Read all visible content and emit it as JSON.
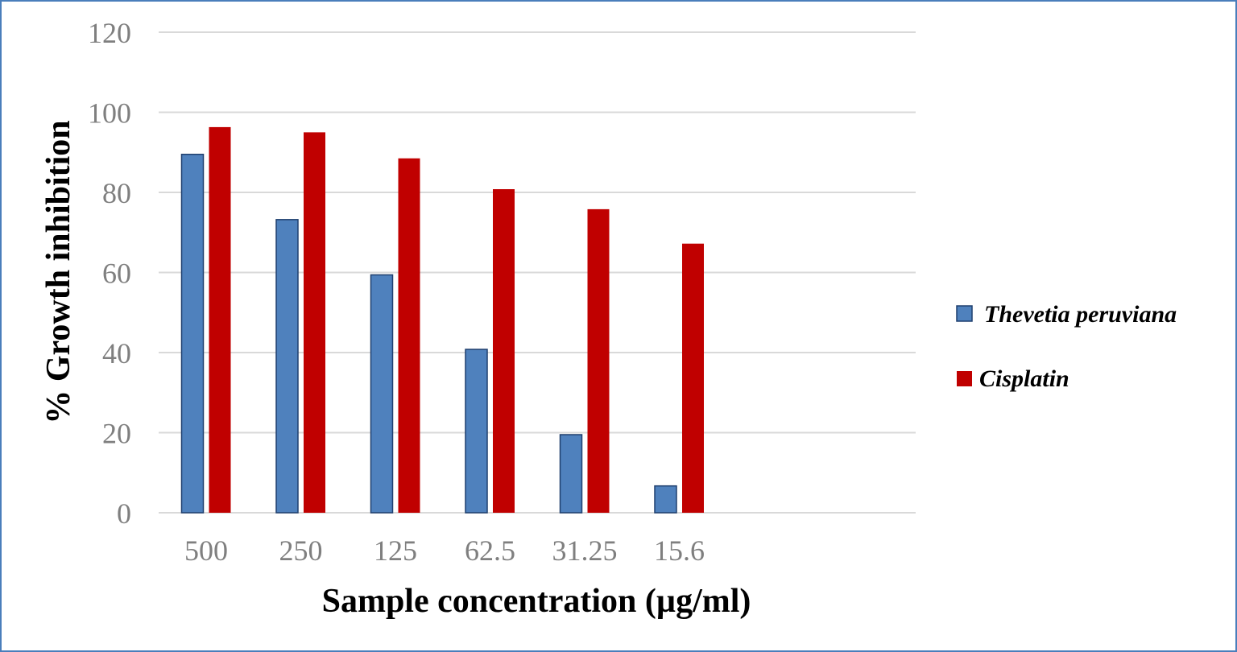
{
  "chart_data": {
    "type": "bar",
    "categories": [
      "500",
      "250",
      "125",
      "62.5",
      "31.25",
      "15.6"
    ],
    "series": [
      {
        "name": "Thevetia peruviana",
        "values": [
          89.5,
          73.2,
          59.4,
          40.8,
          19.5,
          6.7
        ],
        "color": "#4f81bd",
        "stroke": "#1f3f6e"
      },
      {
        "name": "Cisplatin",
        "values": [
          96.3,
          95.0,
          88.5,
          80.8,
          75.8,
          67.2
        ],
        "color": "#c00000",
        "stroke": "#c00000"
      }
    ],
    "xlabel": "Sample concentration (µg/ml)",
    "ylabel": "% Growth inhibition",
    "ylim": [
      0,
      120
    ],
    "yticks": [
      "0",
      "20",
      "40",
      "60",
      "80",
      "100",
      "120"
    ],
    "grid": true,
    "legend_position": "right"
  }
}
